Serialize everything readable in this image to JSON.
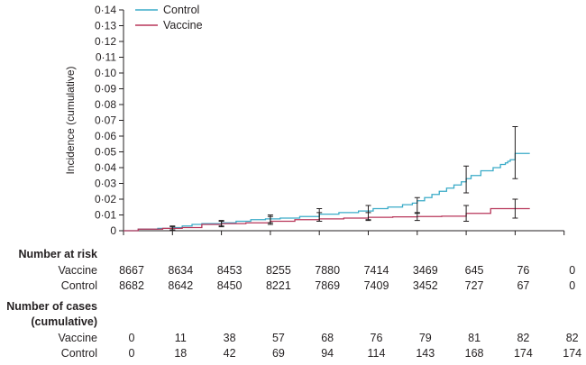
{
  "chart_data": {
    "type": "line",
    "ylabel": "Incidence (cumulative)",
    "xlabel": "",
    "ylim": [
      0,
      0.14
    ],
    "xlim": [
      0,
      9
    ],
    "yticks": [
      0,
      0.01,
      0.02,
      0.03,
      0.04,
      0.05,
      0.06,
      0.07,
      0.08,
      0.09,
      0.1,
      0.11,
      0.12,
      0.13,
      0.14
    ],
    "ytick_labels": [
      "0",
      "0·01",
      "0·02",
      "0·03",
      "0·04",
      "0·05",
      "0·06",
      "0·07",
      "0·08",
      "0·09",
      "0·10",
      "0·11",
      "0·12",
      "0·13",
      "0·14"
    ],
    "xticks": [
      0,
      1,
      2,
      3,
      4,
      5,
      6,
      7,
      8,
      9
    ],
    "grid": false,
    "legend_position": "top-left",
    "colors": {
      "Control": "#3aabc8",
      "Vaccine": "#b8365a",
      "axis": "#231f20",
      "error_bar": "#231f20"
    },
    "series": [
      {
        "name": "Control",
        "step": true,
        "x": [
          0,
          0.3,
          0.7,
          1.0,
          1.2,
          1.4,
          1.6,
          2.0,
          2.3,
          2.6,
          2.9,
          3.2,
          3.6,
          4.0,
          4.4,
          4.8,
          5.1,
          5.4,
          5.7,
          5.9,
          6.0,
          6.15,
          6.3,
          6.45,
          6.6,
          6.75,
          6.9,
          7.0,
          7.1,
          7.3,
          7.55,
          7.7,
          7.8,
          7.85,
          7.9,
          8.0,
          8.3
        ],
        "y": [
          0,
          0.001,
          0.0015,
          0.002,
          0.003,
          0.004,
          0.0045,
          0.005,
          0.006,
          0.007,
          0.0075,
          0.008,
          0.009,
          0.0105,
          0.0115,
          0.0125,
          0.014,
          0.015,
          0.0165,
          0.0175,
          0.019,
          0.021,
          0.023,
          0.025,
          0.027,
          0.029,
          0.031,
          0.033,
          0.035,
          0.038,
          0.04,
          0.042,
          0.043,
          0.044,
          0.045,
          0.049,
          0.049
        ]
      },
      {
        "name": "Vaccine",
        "step": true,
        "x": [
          0,
          0.3,
          0.8,
          1.2,
          1.6,
          2.0,
          2.5,
          3.0,
          3.5,
          4.0,
          4.5,
          5.0,
          5.5,
          6.0,
          6.5,
          7.0,
          7.5,
          8.3
        ],
        "y": [
          0,
          0.001,
          0.0015,
          0.002,
          0.004,
          0.0045,
          0.005,
          0.006,
          0.007,
          0.0075,
          0.008,
          0.0085,
          0.0088,
          0.009,
          0.0092,
          0.011,
          0.014,
          0.014
        ]
      }
    ],
    "error_bars": [
      {
        "x": 1,
        "y": 0.0015,
        "low": 0.0005,
        "high": 0.003
      },
      {
        "x": 2,
        "y": 0.0045,
        "low": 0.0025,
        "high": 0.0065
      },
      {
        "x": 3,
        "y": 0.007,
        "low": 0.004,
        "high": 0.01
      },
      {
        "x": 4,
        "y": 0.01,
        "low": 0.006,
        "high": 0.014
      },
      {
        "x": 5,
        "y": 0.0115,
        "low": 0.007,
        "high": 0.016
      },
      {
        "x": 6,
        "y": 0.0155,
        "low": 0.011,
        "high": 0.021
      },
      {
        "x": 7,
        "y": 0.033,
        "low": 0.024,
        "high": 0.041
      },
      {
        "x": 8,
        "y": 0.049,
        "low": 0.033,
        "high": 0.066
      },
      {
        "x": 1,
        "y": 0.0015,
        "low": 0.0005,
        "high": 0.0025
      },
      {
        "x": 2,
        "y": 0.0045,
        "low": 0.003,
        "high": 0.006
      },
      {
        "x": 3,
        "y": 0.0065,
        "low": 0.005,
        "high": 0.009
      },
      {
        "x": 4,
        "y": 0.0085,
        "low": 0.006,
        "high": 0.0115
      },
      {
        "x": 5,
        "y": 0.009,
        "low": 0.0065,
        "high": 0.0115
      },
      {
        "x": 6,
        "y": 0.009,
        "low": 0.0065,
        "high": 0.0115
      },
      {
        "x": 7,
        "y": 0.011,
        "low": 0.006,
        "high": 0.016
      },
      {
        "x": 8,
        "y": 0.014,
        "low": 0.008,
        "high": 0.02
      }
    ]
  },
  "tables": {
    "risk": {
      "title": "Number at risk",
      "rows": [
        {
          "label": "Vaccine",
          "values": [
            "8667",
            "8634",
            "8453",
            "8255",
            "7880",
            "7414",
            "3469",
            "645",
            "76",
            "0"
          ]
        },
        {
          "label": "Control",
          "values": [
            "8682",
            "8642",
            "8450",
            "8221",
            "7869",
            "7409",
            "3452",
            "727",
            "67",
            "0"
          ]
        }
      ]
    },
    "cases": {
      "title_line1": "Number of cases",
      "title_line2": "(cumulative)",
      "rows": [
        {
          "label": "Vaccine",
          "values": [
            "0",
            "11",
            "38",
            "57",
            "68",
            "76",
            "79",
            "81",
            "82",
            "82"
          ]
        },
        {
          "label": "Control",
          "values": [
            "0",
            "18",
            "42",
            "69",
            "94",
            "114",
            "143",
            "168",
            "174",
            "174"
          ]
        }
      ]
    }
  }
}
